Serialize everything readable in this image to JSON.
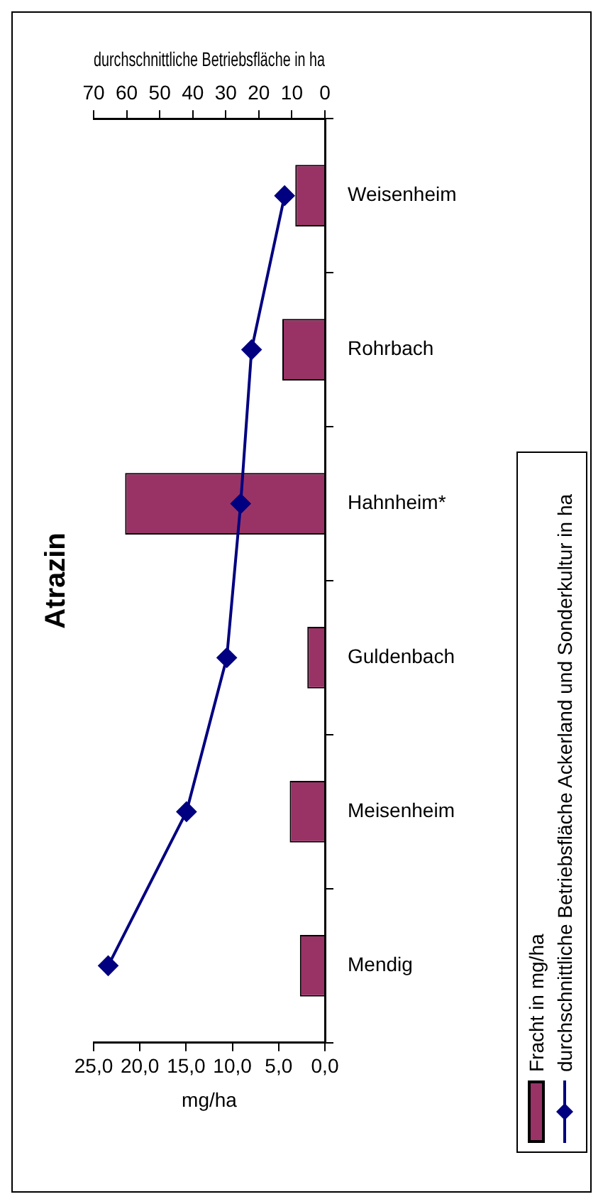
{
  "chart_data": {
    "type": "bar",
    "orientation": "horizontal",
    "title": "Atrazin",
    "xlabel": "mg/ha",
    "x2label": "durchschnittliche Betriebsfläche in ha",
    "categories": [
      "Weisenheim",
      "Rohrbach",
      "Hahnheim*",
      "Guldenbach",
      "Meisenheim",
      "Mendig"
    ],
    "series": [
      {
        "name": "Fracht in mg/ha",
        "color": "#993366",
        "values": [
          3.2,
          4.6,
          21.6,
          1.9,
          3.8,
          2.7
        ]
      },
      {
        "name": "durchschnittliche Betriebsfläche Ackerland und Sonderkultur in ha",
        "type": "line",
        "axis": "x2",
        "color": "#000080",
        "values": [
          12.2,
          22.2,
          25.5,
          29.7,
          41.9,
          65.6
        ]
      }
    ],
    "xlim": [
      25,
      0
    ],
    "xticks": [
      {
        "value": 25,
        "label": "25,0"
      },
      {
        "value": 20,
        "label": "20,0"
      },
      {
        "value": 15,
        "label": "15,0"
      },
      {
        "value": 10,
        "label": "10,0"
      },
      {
        "value": 5,
        "label": "5,0"
      },
      {
        "value": 0,
        "label": "0,0"
      }
    ],
    "x2lim": [
      70,
      0
    ],
    "x2ticks": [
      70,
      60,
      50,
      40,
      30,
      20,
      10,
      0
    ],
    "legend": "right",
    "marker": "diamond",
    "line_style": "solid"
  }
}
